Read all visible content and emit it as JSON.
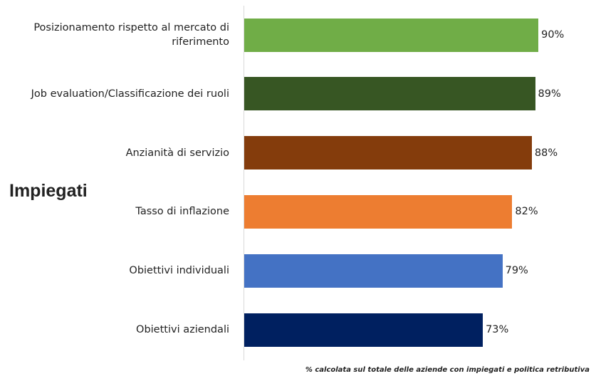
{
  "chart_data": {
    "type": "bar",
    "orientation": "horizontal",
    "categories": [
      "Posizionamento rispetto al mercato di riferimento",
      "Job evaluation/Classificazione dei ruoli",
      "Anzianità di servizio",
      "Tasso di inflazione",
      "Obiettivi individuali",
      "Obiettivi aziendali"
    ],
    "values": [
      90,
      89,
      88,
      82,
      79,
      73
    ],
    "value_labels": [
      "90%",
      "89%",
      "88%",
      "82%",
      "79%",
      "73%"
    ],
    "colors": [
      "#70ad47",
      "#375623",
      "#843c0c",
      "#ed7d31",
      "#4472c4",
      "#002060"
    ],
    "group_label": "Impiegati",
    "note": "% calcolata sul totale delle aziende con impiegati e politica retributiva"
  }
}
